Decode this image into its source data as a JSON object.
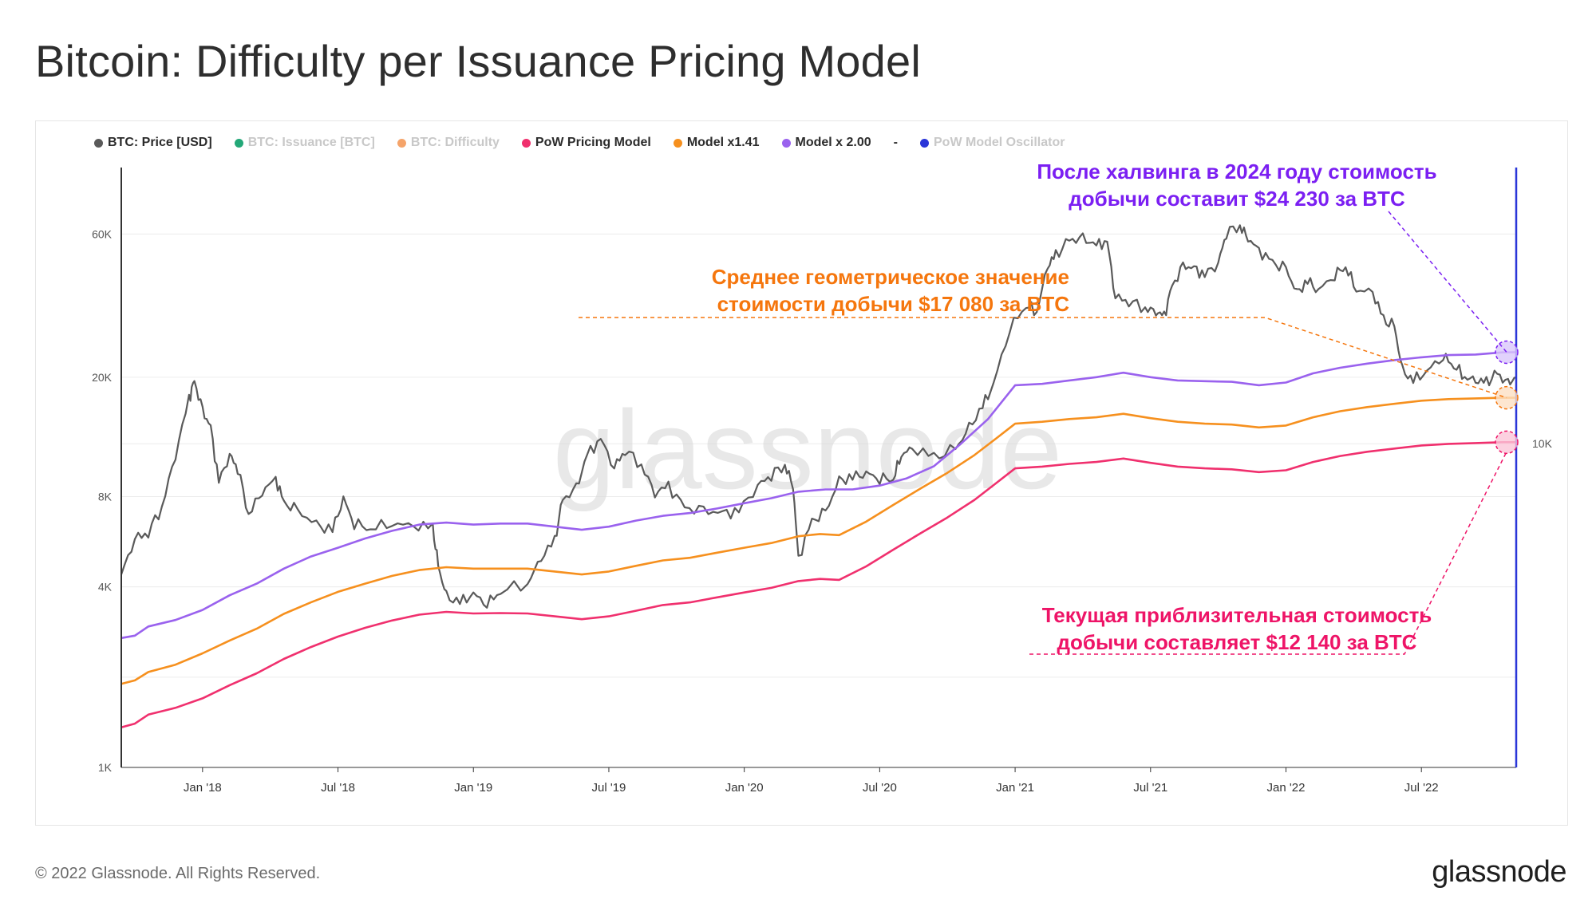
{
  "title": "Bitcoin: Difficulty per Issuance Pricing Model",
  "legend": [
    {
      "label": "BTC: Price [USD]",
      "color": "#5a5a5a",
      "muted": false
    },
    {
      "label": "BTC: Issuance [BTC]",
      "color": "#23a878",
      "muted": true
    },
    {
      "label": "BTC: Difficulty",
      "color": "#f5a46a",
      "muted": true
    },
    {
      "label": "PoW Pricing Model",
      "color": "#f0306e",
      "muted": false
    },
    {
      "label": "Model x1.41",
      "color": "#f6901e",
      "muted": false
    },
    {
      "label": "Model x 2.00",
      "color": "#9a62ee",
      "muted": false
    },
    {
      "label": "-",
      "color": "",
      "muted": false
    },
    {
      "label": "PoW Model Oscillator",
      "color": "#2a36d8",
      "muted": true
    }
  ],
  "watermark": "glassnode",
  "annotations": {
    "halving": {
      "line1": "После халвинга в 2024 году стоимость",
      "line2": "добычи составит $24 230 за BTC",
      "color": "#7b1ff2"
    },
    "geomean": {
      "line1": "Среднее геометрическое значение",
      "line2": "стоимости добычи $17 080  за BTC",
      "color": "#f5760d"
    },
    "current": {
      "line1": "Текущая приблизительная стоимость",
      "line2": "добычи составляет $12 140 за BTC",
      "color": "#ee1467"
    }
  },
  "footer": "© 2022 Glassnode. All Rights Reserved.",
  "logo": "glassnode",
  "chart_data": {
    "type": "line",
    "title": "Bitcoin: Difficulty per Issuance Pricing Model",
    "yscale": "log",
    "ylim": [
      1000,
      100000
    ],
    "y_ticks": [
      {
        "value": 1000,
        "label": "1K"
      },
      {
        "value": 4000,
        "label": "4K"
      },
      {
        "value": 8000,
        "label": "8K"
      },
      {
        "value": 20000,
        "label": "20K"
      },
      {
        "value": 60000,
        "label": "60K"
      }
    ],
    "right_tick": "10K",
    "x_ticks": [
      "Jan '18",
      "Jul '18",
      "Jan '19",
      "Jul '19",
      "Jan '20",
      "Jul '20",
      "Jan '21",
      "Jul '21",
      "Jan '22",
      "Jul '22"
    ],
    "x_start": 2017.7,
    "x_end": 2022.85,
    "series": [
      {
        "name": "BTC: Price [USD]",
        "color": "#5a5a5a",
        "points": [
          [
            2017.7,
            4400
          ],
          [
            2017.75,
            5800
          ],
          [
            2017.8,
            6100
          ],
          [
            2017.85,
            7400
          ],
          [
            2017.9,
            11000
          ],
          [
            2017.95,
            17000
          ],
          [
            2017.97,
            19300
          ],
          [
            2018.0,
            15500
          ],
          [
            2018.03,
            13500
          ],
          [
            2018.06,
            9000
          ],
          [
            2018.1,
            11000
          ],
          [
            2018.13,
            10000
          ],
          [
            2018.17,
            7000
          ],
          [
            2018.22,
            8300
          ],
          [
            2018.27,
            9200
          ],
          [
            2018.3,
            7600
          ],
          [
            2018.35,
            7200
          ],
          [
            2018.42,
            6400
          ],
          [
            2018.48,
            6200
          ],
          [
            2018.52,
            7900
          ],
          [
            2018.56,
            6500
          ],
          [
            2018.62,
            6300
          ],
          [
            2018.7,
            6500
          ],
          [
            2018.78,
            6400
          ],
          [
            2018.85,
            6300
          ],
          [
            2018.87,
            4700
          ],
          [
            2018.9,
            3700
          ],
          [
            2018.95,
            3550
          ],
          [
            2019.0,
            3800
          ],
          [
            2019.05,
            3500
          ],
          [
            2019.1,
            3900
          ],
          [
            2019.2,
            4100
          ],
          [
            2019.25,
            5000
          ],
          [
            2019.3,
            5700
          ],
          [
            2019.33,
            7800
          ],
          [
            2019.38,
            8500
          ],
          [
            2019.42,
            11000
          ],
          [
            2019.47,
            12500
          ],
          [
            2019.52,
            10000
          ],
          [
            2019.56,
            11500
          ],
          [
            2019.62,
            10200
          ],
          [
            2019.67,
            8200
          ],
          [
            2019.72,
            8700
          ],
          [
            2019.78,
            7300
          ],
          [
            2019.85,
            7200
          ],
          [
            2019.92,
            7000
          ],
          [
            2019.98,
            7200
          ],
          [
            2020.05,
            8700
          ],
          [
            2020.1,
            9500
          ],
          [
            2020.15,
            10200
          ],
          [
            2020.18,
            8700
          ],
          [
            2020.2,
            5000
          ],
          [
            2020.25,
            6600
          ],
          [
            2020.3,
            7100
          ],
          [
            2020.35,
            9000
          ],
          [
            2020.4,
            9300
          ],
          [
            2020.45,
            9600
          ],
          [
            2020.5,
            9200
          ],
          [
            2020.55,
            9200
          ],
          [
            2020.58,
            11000
          ],
          [
            2020.62,
            11600
          ],
          [
            2020.7,
            10800
          ],
          [
            2020.78,
            11500
          ],
          [
            2020.83,
            13500
          ],
          [
            2020.88,
            16000
          ],
          [
            2020.92,
            19000
          ],
          [
            2020.98,
            29000
          ],
          [
            2021.04,
            35000
          ],
          [
            2021.08,
            33000
          ],
          [
            2021.12,
            47000
          ],
          [
            2021.15,
            51000
          ],
          [
            2021.2,
            57000
          ],
          [
            2021.25,
            58000
          ],
          [
            2021.3,
            55000
          ],
          [
            2021.34,
            57000
          ],
          [
            2021.37,
            37000
          ],
          [
            2021.42,
            36000
          ],
          [
            2021.48,
            34000
          ],
          [
            2021.52,
            33000
          ],
          [
            2021.55,
            32000
          ],
          [
            2021.58,
            40000
          ],
          [
            2021.62,
            47000
          ],
          [
            2021.66,
            46000
          ],
          [
            2021.7,
            44000
          ],
          [
            2021.75,
            48000
          ],
          [
            2021.78,
            61000
          ],
          [
            2021.83,
            64000
          ],
          [
            2021.86,
            58000
          ],
          [
            2021.9,
            53000
          ],
          [
            2021.95,
            48000
          ],
          [
            2022.0,
            46000
          ],
          [
            2022.04,
            38000
          ],
          [
            2022.08,
            42000
          ],
          [
            2022.12,
            39000
          ],
          [
            2022.18,
            44000
          ],
          [
            2022.22,
            47000
          ],
          [
            2022.26,
            39000
          ],
          [
            2022.32,
            38500
          ],
          [
            2022.36,
            31000
          ],
          [
            2022.4,
            29500
          ],
          [
            2022.43,
            21000
          ],
          [
            2022.47,
            19500
          ],
          [
            2022.52,
            21000
          ],
          [
            2022.58,
            23500
          ],
          [
            2022.62,
            22000
          ],
          [
            2022.66,
            20000
          ],
          [
            2022.7,
            19500
          ],
          [
            2022.74,
            19200
          ],
          [
            2022.78,
            20500
          ],
          [
            2022.82,
            19000
          ],
          [
            2022.85,
            20000
          ]
        ]
      },
      {
        "name": "Model x 2.00",
        "color": "#9a62ee",
        "points": [
          [
            2017.7,
            2700
          ],
          [
            2017.75,
            2750
          ],
          [
            2017.8,
            2950
          ],
          [
            2017.9,
            3100
          ],
          [
            2018.0,
            3350
          ],
          [
            2018.1,
            3750
          ],
          [
            2018.2,
            4100
          ],
          [
            2018.3,
            4600
          ],
          [
            2018.4,
            5050
          ],
          [
            2018.5,
            5400
          ],
          [
            2018.6,
            5800
          ],
          [
            2018.7,
            6150
          ],
          [
            2018.8,
            6450
          ],
          [
            2018.9,
            6550
          ],
          [
            2019.0,
            6450
          ],
          [
            2019.1,
            6500
          ],
          [
            2019.2,
            6500
          ],
          [
            2019.3,
            6350
          ],
          [
            2019.4,
            6200
          ],
          [
            2019.5,
            6350
          ],
          [
            2019.6,
            6650
          ],
          [
            2019.7,
            6900
          ],
          [
            2019.8,
            7050
          ],
          [
            2019.9,
            7300
          ],
          [
            2020.0,
            7600
          ],
          [
            2020.1,
            7900
          ],
          [
            2020.2,
            8300
          ],
          [
            2020.3,
            8450
          ],
          [
            2020.4,
            8450
          ],
          [
            2020.5,
            8700
          ],
          [
            2020.6,
            9200
          ],
          [
            2020.7,
            10100
          ],
          [
            2020.8,
            12000
          ],
          [
            2020.9,
            14500
          ],
          [
            2021.0,
            18800
          ],
          [
            2021.1,
            19000
          ],
          [
            2021.2,
            19500
          ],
          [
            2021.3,
            20000
          ],
          [
            2021.4,
            20700
          ],
          [
            2021.5,
            20000
          ],
          [
            2021.6,
            19500
          ],
          [
            2021.7,
            19400
          ],
          [
            2021.8,
            19300
          ],
          [
            2021.9,
            18800
          ],
          [
            2022.0,
            19200
          ],
          [
            2022.1,
            20600
          ],
          [
            2022.2,
            21500
          ],
          [
            2022.3,
            22200
          ],
          [
            2022.4,
            22800
          ],
          [
            2022.5,
            23300
          ],
          [
            2022.6,
            23700
          ],
          [
            2022.7,
            23800
          ],
          [
            2022.8,
            24200
          ],
          [
            2022.85,
            24230
          ]
        ]
      },
      {
        "name": "Model x1.41",
        "color": "#f6901e",
        "points": [
          [
            2017.7,
            1900
          ],
          [
            2017.75,
            1950
          ],
          [
            2017.8,
            2080
          ],
          [
            2017.9,
            2200
          ],
          [
            2018.0,
            2400
          ],
          [
            2018.1,
            2650
          ],
          [
            2018.2,
            2900
          ],
          [
            2018.3,
            3250
          ],
          [
            2018.4,
            3550
          ],
          [
            2018.5,
            3850
          ],
          [
            2018.6,
            4100
          ],
          [
            2018.7,
            4350
          ],
          [
            2018.8,
            4550
          ],
          [
            2018.9,
            4650
          ],
          [
            2019.0,
            4600
          ],
          [
            2019.1,
            4600
          ],
          [
            2019.2,
            4600
          ],
          [
            2019.3,
            4500
          ],
          [
            2019.4,
            4400
          ],
          [
            2019.5,
            4500
          ],
          [
            2019.6,
            4700
          ],
          [
            2019.7,
            4900
          ],
          [
            2019.8,
            5000
          ],
          [
            2019.9,
            5200
          ],
          [
            2020.0,
            5400
          ],
          [
            2020.1,
            5600
          ],
          [
            2020.2,
            5900
          ],
          [
            2020.28,
            6000
          ],
          [
            2020.35,
            5950
          ],
          [
            2020.45,
            6600
          ],
          [
            2020.55,
            7500
          ],
          [
            2020.65,
            8500
          ],
          [
            2020.75,
            9600
          ],
          [
            2020.85,
            11000
          ],
          [
            2020.93,
            12500
          ],
          [
            2021.0,
            14000
          ],
          [
            2021.1,
            14200
          ],
          [
            2021.2,
            14500
          ],
          [
            2021.3,
            14700
          ],
          [
            2021.4,
            15100
          ],
          [
            2021.5,
            14600
          ],
          [
            2021.6,
            14200
          ],
          [
            2021.7,
            14000
          ],
          [
            2021.8,
            13900
          ],
          [
            2021.9,
            13600
          ],
          [
            2022.0,
            13800
          ],
          [
            2022.1,
            14700
          ],
          [
            2022.2,
            15400
          ],
          [
            2022.3,
            15900
          ],
          [
            2022.4,
            16300
          ],
          [
            2022.5,
            16700
          ],
          [
            2022.6,
            16900
          ],
          [
            2022.7,
            17000
          ],
          [
            2022.8,
            17080
          ],
          [
            2022.85,
            17080
          ]
        ]
      },
      {
        "name": "PoW Pricing Model",
        "color": "#f0306e",
        "points": [
          [
            2017.7,
            1360
          ],
          [
            2017.75,
            1400
          ],
          [
            2017.8,
            1500
          ],
          [
            2017.9,
            1580
          ],
          [
            2018.0,
            1700
          ],
          [
            2018.1,
            1880
          ],
          [
            2018.2,
            2060
          ],
          [
            2018.3,
            2300
          ],
          [
            2018.4,
            2520
          ],
          [
            2018.5,
            2730
          ],
          [
            2018.6,
            2920
          ],
          [
            2018.7,
            3090
          ],
          [
            2018.8,
            3230
          ],
          [
            2018.9,
            3300
          ],
          [
            2019.0,
            3260
          ],
          [
            2019.1,
            3270
          ],
          [
            2019.2,
            3260
          ],
          [
            2019.3,
            3190
          ],
          [
            2019.4,
            3120
          ],
          [
            2019.5,
            3190
          ],
          [
            2019.6,
            3330
          ],
          [
            2019.7,
            3480
          ],
          [
            2019.8,
            3550
          ],
          [
            2019.9,
            3690
          ],
          [
            2020.0,
            3830
          ],
          [
            2020.1,
            3970
          ],
          [
            2020.2,
            4180
          ],
          [
            2020.28,
            4250
          ],
          [
            2020.35,
            4220
          ],
          [
            2020.45,
            4680
          ],
          [
            2020.55,
            5320
          ],
          [
            2020.65,
            6030
          ],
          [
            2020.75,
            6810
          ],
          [
            2020.85,
            7800
          ],
          [
            2020.93,
            8870
          ],
          [
            2021.0,
            9930
          ],
          [
            2021.1,
            10070
          ],
          [
            2021.2,
            10280
          ],
          [
            2021.3,
            10430
          ],
          [
            2021.4,
            10710
          ],
          [
            2021.5,
            10360
          ],
          [
            2021.6,
            10070
          ],
          [
            2021.7,
            9930
          ],
          [
            2021.8,
            9860
          ],
          [
            2021.9,
            9650
          ],
          [
            2022.0,
            9790
          ],
          [
            2022.1,
            10430
          ],
          [
            2022.2,
            10920
          ],
          [
            2022.3,
            11280
          ],
          [
            2022.4,
            11560
          ],
          [
            2022.5,
            11840
          ],
          [
            2022.6,
            11990
          ],
          [
            2022.7,
            12060
          ],
          [
            2022.8,
            12140
          ],
          [
            2022.85,
            12140
          ]
        ]
      }
    ]
  }
}
